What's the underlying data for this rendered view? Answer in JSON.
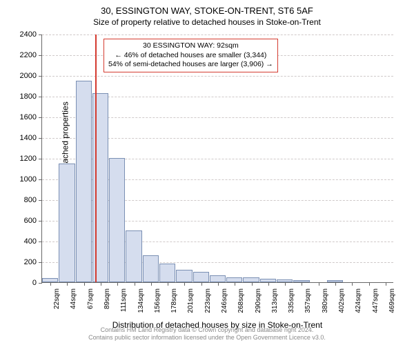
{
  "title_main": "30, ESSINGTON WAY, STOKE-ON-TRENT, ST6 5AF",
  "title_sub": "Size of property relative to detached houses in Stoke-on-Trent",
  "chart": {
    "type": "histogram",
    "ylabel": "Number of detached properties",
    "xlabel": "Distribution of detached houses by size in Stoke-on-Trent",
    "ylim": [
      0,
      2400
    ],
    "ytick_step": 200,
    "xcategories": [
      "22sqm",
      "44sqm",
      "67sqm",
      "89sqm",
      "111sqm",
      "134sqm",
      "156sqm",
      "178sqm",
      "201sqm",
      "223sqm",
      "246sqm",
      "268sqm",
      "290sqm",
      "313sqm",
      "335sqm",
      "357sqm",
      "380sqm",
      "402sqm",
      "424sqm",
      "447sqm",
      "469sqm"
    ],
    "values": [
      40,
      1150,
      1950,
      1830,
      1200,
      500,
      260,
      180,
      120,
      100,
      70,
      50,
      45,
      35,
      25,
      20,
      0,
      20,
      0,
      0,
      0
    ],
    "bar_fill": "#d5ddee",
    "bar_stroke": "#7a8fb3",
    "grid_color": "#cfc9c9",
    "axis_color": "#666666",
    "marker_color": "#d43a2f",
    "marker_index_position": 3.15,
    "background_color": "#ffffff",
    "title_fontsize": 13,
    "subtitle_fontsize": 12,
    "label_fontsize": 12,
    "tick_fontsize": 11,
    "xtick_fontsize": 10
  },
  "annotation": {
    "line1": "30 ESSINGTON WAY: 92sqm",
    "line2": "← 46% of detached houses are smaller (3,344)",
    "line3": "54% of semi-detached houses are larger (3,906) →",
    "border_color": "#d43a2f",
    "fontsize": 10.5
  },
  "footer": {
    "line1": "Contains HM Land Registry data © Crown copyright and database right 2024.",
    "line2": "Contains public sector information licensed under the Open Government Licence v3.0.",
    "color": "#888888",
    "fontsize": 9
  }
}
